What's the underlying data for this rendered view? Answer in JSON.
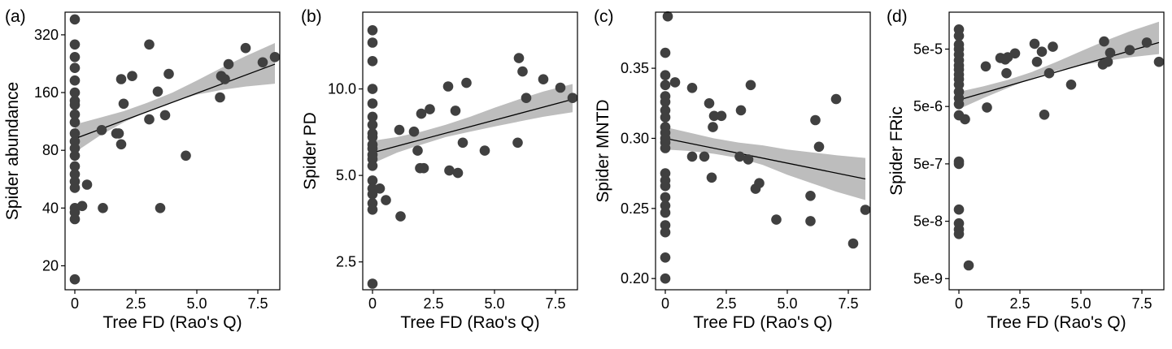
{
  "chart_data": [
    {
      "panel": "(a)",
      "type": "scatter",
      "xlabel": "Tree FD (Rao's Q)",
      "ylabel": "Spider abundance",
      "scale": "log",
      "xlim": [
        -0.4,
        8.4
      ],
      "ylim": [
        15,
        420
      ],
      "xticks": [
        {
          "v": 0,
          "label": "0"
        },
        {
          "v": 2.5,
          "label": "2.5"
        },
        {
          "v": 5,
          "label": "5.0"
        },
        {
          "v": 7.5,
          "label": "7.5"
        }
      ],
      "yticks": [
        {
          "v": 20,
          "label": "20"
        },
        {
          "v": 40,
          "label": "40"
        },
        {
          "v": 80,
          "label": "80"
        },
        {
          "v": 160,
          "label": "160"
        },
        {
          "v": 320,
          "label": "320"
        }
      ],
      "fit": {
        "x": [
          0,
          8.2
        ],
        "y": [
          92,
          225
        ]
      },
      "ci": {
        "x": [
          0,
          1,
          2,
          3,
          4,
          5,
          6,
          7,
          8.2
        ],
        "lower": [
          78,
          95,
          112,
          128,
          143,
          156,
          165,
          172,
          178
        ],
        "upper": [
          109,
          118,
          128,
          142,
          160,
          185,
          215,
          248,
          290
        ]
      },
      "points": [
        [
          0,
          385
        ],
        [
          0,
          285
        ],
        [
          0,
          245
        ],
        [
          0,
          215
        ],
        [
          0,
          185
        ],
        [
          0,
          160
        ],
        [
          0,
          145
        ],
        [
          0,
          138
        ],
        [
          0,
          123
        ],
        [
          0,
          112
        ],
        [
          0,
          98
        ],
        [
          0,
          89
        ],
        [
          0,
          82
        ],
        [
          0,
          75
        ],
        [
          0,
          66
        ],
        [
          0,
          60
        ],
        [
          0,
          55
        ],
        [
          0,
          51
        ],
        [
          0,
          40
        ],
        [
          0,
          38
        ],
        [
          0,
          35
        ],
        [
          0,
          17
        ],
        [
          0.3,
          41
        ],
        [
          0.5,
          53
        ],
        [
          1.1,
          102
        ],
        [
          1.15,
          40
        ],
        [
          1.7,
          98
        ],
        [
          1.8,
          98
        ],
        [
          1.9,
          188
        ],
        [
          1.9,
          86
        ],
        [
          2.0,
          140
        ],
        [
          2.35,
          195
        ],
        [
          3.05,
          285
        ],
        [
          3.05,
          116
        ],
        [
          3.4,
          162
        ],
        [
          3.5,
          40
        ],
        [
          3.7,
          122
        ],
        [
          3.85,
          200
        ],
        [
          4.55,
          75
        ],
        [
          5.95,
          151
        ],
        [
          6.0,
          195
        ],
        [
          6.15,
          188
        ],
        [
          6.3,
          225
        ],
        [
          7.0,
          273
        ],
        [
          7.7,
          230
        ],
        [
          8.2,
          245
        ]
      ]
    },
    {
      "panel": "(b)",
      "type": "scatter",
      "xlabel": "Tree FD (Rao's Q)",
      "ylabel": "Spider PD",
      "scale": "log",
      "xlim": [
        -0.4,
        8.4
      ],
      "ylim": [
        2.0,
        18.5
      ],
      "xticks": [
        {
          "v": 0,
          "label": "0"
        },
        {
          "v": 2.5,
          "label": "2.5"
        },
        {
          "v": 5,
          "label": "5.0"
        },
        {
          "v": 7.5,
          "label": "7.5"
        }
      ],
      "yticks": [
        {
          "v": 2.5,
          "label": "2.5"
        },
        {
          "v": 5,
          "label": "5.0"
        },
        {
          "v": 10,
          "label": "10.0"
        }
      ],
      "fit": {
        "x": [
          0,
          8.2
        ],
        "y": [
          6.0,
          9.2
        ]
      },
      "ci": {
        "x": [
          0,
          1,
          2,
          3,
          4,
          5,
          6,
          7,
          8.2
        ],
        "lower": [
          5.5,
          6.0,
          6.4,
          6.8,
          7.1,
          7.4,
          7.7,
          8.0,
          8.3
        ],
        "upper": [
          6.6,
          6.8,
          7.1,
          7.5,
          8.0,
          8.6,
          9.2,
          9.8,
          10.4
        ]
      },
      "points": [
        [
          0,
          16.0
        ],
        [
          0,
          14.5
        ],
        [
          0,
          12.5
        ],
        [
          0,
          10.0
        ],
        [
          0,
          8.9
        ],
        [
          0,
          8.0
        ],
        [
          0,
          7.5
        ],
        [
          0,
          7.0
        ],
        [
          0,
          6.8
        ],
        [
          0,
          6.4
        ],
        [
          0,
          6.2
        ],
        [
          0,
          5.9
        ],
        [
          0,
          5.7
        ],
        [
          0,
          5.4
        ],
        [
          0,
          4.8
        ],
        [
          0,
          4.5
        ],
        [
          0,
          4.3
        ],
        [
          0,
          4.0
        ],
        [
          0,
          3.8
        ],
        [
          0,
          2.1
        ],
        [
          0.3,
          4.5
        ],
        [
          0.55,
          4.1
        ],
        [
          1.1,
          7.2
        ],
        [
          1.15,
          3.6
        ],
        [
          1.7,
          7.1
        ],
        [
          1.85,
          6.1
        ],
        [
          1.95,
          5.3
        ],
        [
          2.0,
          8.2
        ],
        [
          2.1,
          5.3
        ],
        [
          2.35,
          8.5
        ],
        [
          3.1,
          10.2
        ],
        [
          3.15,
          5.2
        ],
        [
          3.4,
          8.4
        ],
        [
          3.5,
          5.1
        ],
        [
          3.7,
          6.5
        ],
        [
          3.85,
          10.5
        ],
        [
          4.6,
          6.1
        ],
        [
          5.95,
          6.5
        ],
        [
          6.0,
          12.8
        ],
        [
          6.15,
          11.5
        ],
        [
          6.3,
          9.3
        ],
        [
          7.0,
          10.8
        ],
        [
          7.7,
          10.1
        ],
        [
          8.2,
          9.3
        ]
      ]
    },
    {
      "panel": "(c)",
      "type": "scatter",
      "xlabel": "Tree FD (Rao's Q)",
      "ylabel": "Spider MNTD",
      "scale": "linear",
      "xlim": [
        -0.4,
        8.4
      ],
      "ylim": [
        0.192,
        0.39
      ],
      "xticks": [
        {
          "v": 0,
          "label": "0"
        },
        {
          "v": 2.5,
          "label": "2.5"
        },
        {
          "v": 5,
          "label": "5.0"
        },
        {
          "v": 7.5,
          "label": "7.5"
        }
      ],
      "yticks": [
        {
          "v": 0.2,
          "label": "0.20"
        },
        {
          "v": 0.25,
          "label": "0.25"
        },
        {
          "v": 0.3,
          "label": "0.30"
        },
        {
          "v": 0.35,
          "label": "0.35"
        }
      ],
      "fit": {
        "x": [
          0,
          8.2
        ],
        "y": [
          0.3,
          0.271
        ]
      },
      "ci": {
        "x": [
          0,
          1,
          2,
          3,
          4,
          5,
          6,
          7,
          8.2
        ],
        "lower": [
          0.292,
          0.291,
          0.289,
          0.286,
          0.281,
          0.274,
          0.268,
          0.262,
          0.256
        ],
        "upper": [
          0.308,
          0.304,
          0.3,
          0.297,
          0.295,
          0.292,
          0.29,
          0.288,
          0.286
        ]
      },
      "points": [
        [
          0,
          0.361
        ],
        [
          0,
          0.345
        ],
        [
          0,
          0.338
        ],
        [
          0,
          0.33
        ],
        [
          0,
          0.326
        ],
        [
          0,
          0.32
        ],
        [
          0,
          0.315
        ],
        [
          0,
          0.308
        ],
        [
          0,
          0.304
        ],
        [
          0,
          0.3
        ],
        [
          0,
          0.297
        ],
        [
          0,
          0.293
        ],
        [
          0,
          0.275
        ],
        [
          0,
          0.27
        ],
        [
          0,
          0.266
        ],
        [
          0,
          0.258
        ],
        [
          0,
          0.252
        ],
        [
          0,
          0.247
        ],
        [
          0,
          0.238
        ],
        [
          0,
          0.233
        ],
        [
          0,
          0.215
        ],
        [
          0,
          0.2
        ],
        [
          0.1,
          0.387
        ],
        [
          0.4,
          0.34
        ],
        [
          1.1,
          0.336
        ],
        [
          1.1,
          0.287
        ],
        [
          1.6,
          0.287
        ],
        [
          1.8,
          0.325
        ],
        [
          1.9,
          0.272
        ],
        [
          1.95,
          0.308
        ],
        [
          2.0,
          0.316
        ],
        [
          2.3,
          0.316
        ],
        [
          3.05,
          0.287
        ],
        [
          3.1,
          0.32
        ],
        [
          3.4,
          0.285
        ],
        [
          3.5,
          0.338
        ],
        [
          3.7,
          0.264
        ],
        [
          3.85,
          0.268
        ],
        [
          4.55,
          0.242
        ],
        [
          5.95,
          0.259
        ],
        [
          5.95,
          0.241
        ],
        [
          6.15,
          0.313
        ],
        [
          6.3,
          0.294
        ],
        [
          7.0,
          0.328
        ],
        [
          7.7,
          0.225
        ],
        [
          8.2,
          0.249
        ]
      ]
    },
    {
      "panel": "(d)",
      "type": "scatter",
      "xlabel": "Tree FD (Rao's Q)",
      "ylabel": "Spider FRic",
      "scale": "log",
      "xlim": [
        -0.4,
        8.4
      ],
      "ylim": [
        3.2e-09,
        0.00022
      ],
      "xticks": [
        {
          "v": 0,
          "label": "0"
        },
        {
          "v": 2.5,
          "label": "2.5"
        },
        {
          "v": 5,
          "label": "5.0"
        },
        {
          "v": 7.5,
          "label": "7.5"
        }
      ],
      "yticks": [
        {
          "v": 5e-09,
          "label": "5e-9"
        },
        {
          "v": 5e-08,
          "label": "5e-8"
        },
        {
          "v": 5e-07,
          "label": "5e-7"
        },
        {
          "v": 5e-06,
          "label": "5e-6"
        },
        {
          "v": 5e-05,
          "label": "5e-5"
        }
      ],
      "fit": {
        "x": [
          0,
          8.2
        ],
        "y": [
          6.5e-06,
          6.5e-05
        ]
      },
      "ci": {
        "x": [
          0,
          1,
          2,
          3,
          4,
          5,
          6,
          7,
          8.2
        ],
        "lower": [
          4.5e-06,
          7e-06,
          1.05e-05,
          1.55e-05,
          2.1e-05,
          2.6e-05,
          3.1e-05,
          3.6e-05,
          4.1e-05
        ],
        "upper": [
          9e-06,
          1.12e-05,
          1.45e-05,
          2e-05,
          3e-05,
          4.6e-05,
          7e-05,
          0.000102,
          0.00015
        ]
      },
      "points": [
        [
          0,
          0.00011
        ],
        [
          0,
          8.5e-05
        ],
        [
          0,
          6e-05
        ],
        [
          0,
          5e-05
        ],
        [
          0,
          4e-05
        ],
        [
          0,
          3.2e-05
        ],
        [
          0,
          2.6e-05
        ],
        [
          0,
          2.2e-05
        ],
        [
          0,
          1.8e-05
        ],
        [
          0,
          1.5e-05
        ],
        [
          0,
          1.2e-05
        ],
        [
          0,
          9e-06
        ],
        [
          0,
          7e-06
        ],
        [
          0,
          5.5e-06
        ],
        [
          0,
          3.5e-06
        ],
        [
          0,
          5.5e-07
        ],
        [
          0,
          5e-07
        ],
        [
          0,
          8e-08
        ],
        [
          0,
          4.6e-08
        ],
        [
          0,
          3.6e-08
        ],
        [
          0,
          3e-08
        ],
        [
          0.25,
          3e-06
        ],
        [
          0.4,
          8.5e-09
        ],
        [
          1.1,
          2.5e-05
        ],
        [
          1.15,
          4.8e-06
        ],
        [
          1.7,
          3.5e-05
        ],
        [
          1.9,
          3.3e-05
        ],
        [
          1.95,
          1.9e-05
        ],
        [
          2.0,
          3.6e-05
        ],
        [
          2.3,
          4.2e-05
        ],
        [
          3.1,
          6.2e-05
        ],
        [
          3.2,
          3e-05
        ],
        [
          3.4,
          4.5e-05
        ],
        [
          3.5,
          3.6e-06
        ],
        [
          3.7,
          1.9e-05
        ],
        [
          3.85,
          5.5e-05
        ],
        [
          4.6,
          1.2e-05
        ],
        [
          5.9,
          2.7e-05
        ],
        [
          5.95,
          6.8e-05
        ],
        [
          6.1,
          3e-05
        ],
        [
          6.2,
          4.3e-05
        ],
        [
          7.0,
          4.8e-05
        ],
        [
          7.7,
          6.5e-05
        ],
        [
          8.2,
          3e-05
        ]
      ]
    }
  ]
}
